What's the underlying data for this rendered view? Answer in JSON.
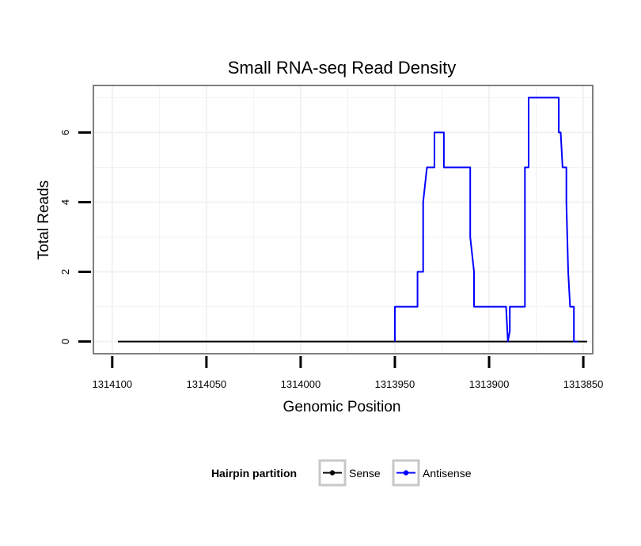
{
  "chart_data": {
    "type": "line",
    "title": "Small RNA-seq Read Density",
    "xlabel": "Genomic Position",
    "ylabel": "Total Reads",
    "x_reversed": true,
    "xlim": [
      1314110,
      1313845
    ],
    "ylim": [
      -0.35,
      7.35
    ],
    "x_ticks": [
      1314100,
      1314050,
      1314000,
      1313950,
      1313900,
      1313850
    ],
    "y_ticks": [
      0,
      2,
      4,
      6
    ],
    "grid": true,
    "legend": {
      "title": "Hairpin partition",
      "position": "bottom",
      "entries": [
        "Sense",
        "Antisense"
      ]
    },
    "series": [
      {
        "name": "Sense",
        "color": "#000000",
        "x": [
          1314097,
          1313848
        ],
        "y": [
          0,
          0
        ]
      },
      {
        "name": "Antisense",
        "color": "#0000ff",
        "x": [
          1313950,
          1313950,
          1313938,
          1313938,
          1313935,
          1313935,
          1313933,
          1313932,
          1313932,
          1313929,
          1313929,
          1313924,
          1313924,
          1313910,
          1313910,
          1313908,
          1313908,
          1313891,
          1313890,
          1313889,
          1313889,
          1313886,
          1313886,
          1313881,
          1313881,
          1313879,
          1313879,
          1313863,
          1313863,
          1313862,
          1313861,
          1313861,
          1313859,
          1313859,
          1313858,
          1313857,
          1313857,
          1313855,
          1313855,
          1313853
        ],
        "y": [
          0,
          1,
          1,
          2,
          2,
          4,
          5,
          5,
          5,
          5,
          6,
          6,
          5,
          5,
          3,
          2,
          1,
          1,
          0,
          0.3,
          1,
          1,
          1,
          1,
          5,
          5,
          7,
          7,
          6,
          6,
          5,
          5,
          5,
          4,
          2,
          1,
          1,
          1,
          0,
          0
        ]
      }
    ]
  }
}
